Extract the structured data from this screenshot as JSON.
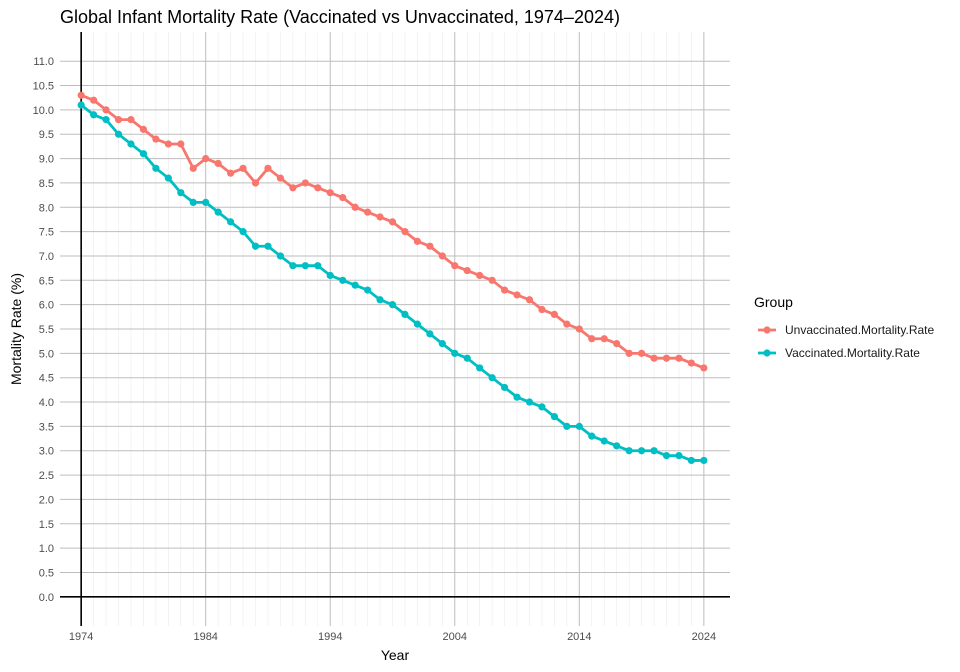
{
  "chart_data": {
    "type": "line",
    "title": "Global Infant Mortality Rate (Vaccinated vs Unvaccinated, 1974–2024)",
    "xlabel": "Year",
    "ylabel": "Mortality Rate (%)",
    "x": [
      1974,
      1975,
      1976,
      1977,
      1978,
      1979,
      1980,
      1981,
      1982,
      1983,
      1984,
      1985,
      1986,
      1987,
      1988,
      1989,
      1990,
      1991,
      1992,
      1993,
      1994,
      1995,
      1996,
      1997,
      1998,
      1999,
      2000,
      2001,
      2002,
      2003,
      2004,
      2005,
      2006,
      2007,
      2008,
      2009,
      2010,
      2011,
      2012,
      2013,
      2014,
      2015,
      2016,
      2017,
      2018,
      2019,
      2020,
      2021,
      2022,
      2023,
      2024
    ],
    "xlim": [
      1972.3,
      2026.1
    ],
    "ylim": [
      -0.6,
      11.6
    ],
    "x_ticks": [
      1974,
      1984,
      1994,
      2004,
      2014,
      2024
    ],
    "x_tick_labels": [
      "1974",
      "1984",
      "1994",
      "2004",
      "2014",
      "2024"
    ],
    "y_ticks": [
      0.0,
      0.5,
      1.0,
      1.5,
      2.0,
      2.5,
      3.0,
      3.5,
      4.0,
      4.5,
      5.0,
      5.5,
      6.0,
      6.5,
      7.0,
      7.5,
      8.0,
      8.5,
      9.0,
      9.5,
      10.0,
      10.5,
      11.0
    ],
    "y_tick_labels": [
      "0.0",
      "0.5",
      "1.0",
      "1.5",
      "2.0",
      "2.5",
      "3.0",
      "3.5",
      "4.0",
      "4.5",
      "5.0",
      "5.5",
      "6.0",
      "6.5",
      "7.0",
      "7.5",
      "8.0",
      "8.5",
      "9.0",
      "9.5",
      "10.0",
      "10.5",
      "11.0"
    ],
    "grid": true,
    "legend": {
      "title": "Group",
      "position": "right"
    },
    "series": [
      {
        "name": "Unvaccinated.Mortality.Rate",
        "color": "#F8766D",
        "values": [
          10.3,
          10.2,
          10.0,
          9.8,
          9.8,
          9.6,
          9.4,
          9.3,
          9.3,
          8.8,
          9.0,
          8.9,
          8.7,
          8.8,
          8.5,
          8.8,
          8.6,
          8.4,
          8.5,
          8.4,
          8.3,
          8.2,
          8.0,
          7.9,
          7.8,
          7.7,
          7.5,
          7.3,
          7.2,
          7.0,
          6.8,
          6.7,
          6.6,
          6.5,
          6.3,
          6.2,
          6.1,
          5.9,
          5.8,
          5.6,
          5.5,
          5.3,
          5.3,
          5.2,
          5.0,
          5.0,
          4.9,
          4.9,
          4.9,
          4.8,
          4.7
        ]
      },
      {
        "name": "Vaccinated.Mortality.Rate",
        "color": "#00BFC4",
        "values": [
          10.1,
          9.9,
          9.8,
          9.5,
          9.3,
          9.1,
          8.8,
          8.6,
          8.3,
          8.1,
          8.1,
          7.9,
          7.7,
          7.5,
          7.2,
          7.2,
          7.0,
          6.8,
          6.8,
          6.8,
          6.6,
          6.5,
          6.4,
          6.3,
          6.1,
          6.0,
          5.8,
          5.6,
          5.4,
          5.2,
          5.0,
          4.9,
          4.7,
          4.5,
          4.3,
          4.1,
          4.0,
          3.9,
          3.7,
          3.5,
          3.5,
          3.3,
          3.2,
          3.1,
          3.0,
          3.0,
          3.0,
          2.9,
          2.9,
          2.8,
          2.8
        ]
      }
    ]
  }
}
